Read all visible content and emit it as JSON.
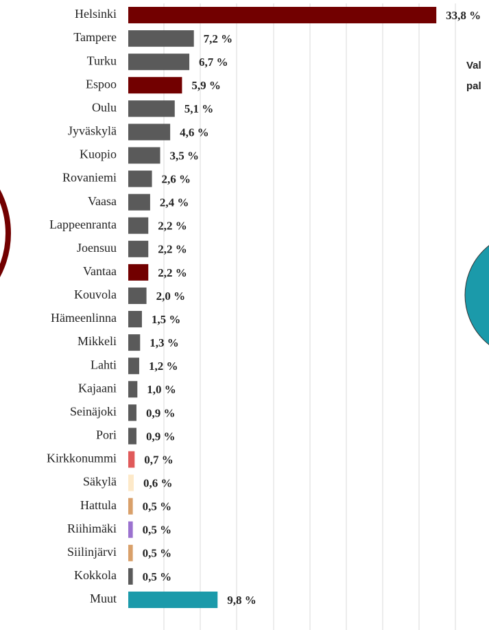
{
  "chart_data": {
    "type": "hbar",
    "categories": [
      "Helsinki",
      "Tampere",
      "Turku",
      "Espoo",
      "Oulu",
      "Jyväskylä",
      "Kuopio",
      "Rovaniemi",
      "Vaasa",
      "Lappeenranta",
      "Joensuu",
      "Vantaa",
      "Kouvola",
      "Hämeenlinna",
      "Mikkeli",
      "Lahti",
      "Kajaani",
      "Seinäjoki",
      "Pori",
      "Kirkkonummi",
      "Säkylä",
      "Hattula",
      "Riihimäki",
      "Siilinjärvi",
      "Kokkola",
      "Muut"
    ],
    "values": [
      33.8,
      7.2,
      6.7,
      5.9,
      5.1,
      4.6,
      3.5,
      2.6,
      2.4,
      2.2,
      2.2,
      2.2,
      2.0,
      1.5,
      1.3,
      1.2,
      1.0,
      0.9,
      0.9,
      0.7,
      0.6,
      0.5,
      0.5,
      0.5,
      0.5,
      9.8
    ],
    "value_labels": [
      "33,8 %",
      "7,2 %",
      "6,7 %",
      "5,9 %",
      "5,1 %",
      "4,6 %",
      "3,5 %",
      "2,6 %",
      "2,4 %",
      "2,2 %",
      "2,2 %",
      "2,2 %",
      "2,0 %",
      "1,5 %",
      "1,3 %",
      "1,2 %",
      "1,0 %",
      "0,9 %",
      "0,9 %",
      "0,7 %",
      "0,6 %",
      "0,5 %",
      "0,5 %",
      "0,5 %",
      "0,5 %",
      "9,8 %"
    ],
    "colors": [
      "#720000",
      "#5a5a5a",
      "#5a5a5a",
      "#720000",
      "#5a5a5a",
      "#5a5a5a",
      "#5a5a5a",
      "#5a5a5a",
      "#5a5a5a",
      "#5a5a5a",
      "#5a5a5a",
      "#720000",
      "#5a5a5a",
      "#5a5a5a",
      "#5a5a5a",
      "#5a5a5a",
      "#5a5a5a",
      "#5a5a5a",
      "#5a5a5a",
      "#e05a5a",
      "#fde9c9",
      "#d9a06a",
      "#9b72cf",
      "#d9a06a",
      "#5a5a5a",
      "#1b9aaa"
    ],
    "xlim": [
      0,
      38
    ],
    "annotations": [
      "Val",
      "pal"
    ]
  }
}
